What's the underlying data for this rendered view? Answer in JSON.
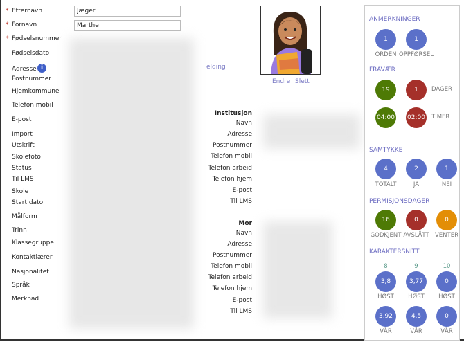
{
  "form": {
    "fields": [
      {
        "label": "Etternavn",
        "required": true,
        "value": "Jæger"
      },
      {
        "label": "Fornavn",
        "required": true,
        "value": "Marthe"
      },
      {
        "label": "Fødselsnummer",
        "required": true
      },
      {
        "label": "Fødselsdato"
      },
      {
        "label": "Adresse"
      },
      {
        "label": "Postnummer"
      },
      {
        "label": "Hjemkommune"
      },
      {
        "label": "Telefon mobil"
      },
      {
        "label": "E-post"
      },
      {
        "label": "Import"
      },
      {
        "label": "Utskrift"
      },
      {
        "label": "Skolefoto"
      },
      {
        "label": "Status"
      },
      {
        "label": "Til LMS"
      },
      {
        "label": "Skole"
      },
      {
        "label": "Start dato"
      },
      {
        "label": "Målform"
      },
      {
        "label": "Trinn"
      },
      {
        "label": "Klassegruppe"
      },
      {
        "label": "Kontaktlærer"
      },
      {
        "label": "Nasjonalitet"
      },
      {
        "label": "Språk"
      },
      {
        "label": "Merknad"
      }
    ],
    "required_mark": "*",
    "info_icon": "i",
    "partial_link": "elding"
  },
  "photo": {
    "edit": "Endre",
    "delete": "Slett"
  },
  "institusjon": {
    "title": "Institusjon",
    "labels": [
      "Navn",
      "Adresse",
      "Postnummer",
      "Telefon mobil",
      "Telefon arbeid",
      "Telefon hjem",
      "E-post",
      "Til LMS"
    ]
  },
  "mor": {
    "title": "Mor",
    "labels": [
      "Navn",
      "Adresse",
      "Postnummer",
      "Telefon mobil",
      "Telefon arbeid",
      "Telefon hjem",
      "E-post",
      "Til LMS"
    ]
  },
  "colors": {
    "blue": "#5b70c9",
    "green": "#4e7a05",
    "red": "#a5302a",
    "orange": "#e38e06",
    "header": "#6a6ac0"
  },
  "panel": {
    "anmerkninger": {
      "title": "ANMERKNINGER",
      "items": [
        {
          "value": "1",
          "label": "ORDEN"
        },
        {
          "value": "1",
          "label": "OPPFØRSEL"
        }
      ]
    },
    "fravaer": {
      "title": "FRAVÆR",
      "dager": {
        "label": "DAGER",
        "values": [
          "19",
          "1"
        ]
      },
      "timer": {
        "label": "TIMER",
        "values": [
          "04:00",
          "02:00"
        ]
      }
    },
    "samtykke": {
      "title": "SAMTYKKE",
      "items": [
        {
          "value": "4",
          "label": "TOTALT"
        },
        {
          "value": "2",
          "label": "JA"
        },
        {
          "value": "1",
          "label": "NEI"
        }
      ]
    },
    "permisjon": {
      "title": "PERMISJONSDAGER",
      "items": [
        {
          "value": "16",
          "label": "GODKJENT"
        },
        {
          "value": "0",
          "label": "AVSLÅTT"
        },
        {
          "value": "0",
          "label": "VENTER"
        }
      ]
    },
    "karakter": {
      "title": "KARAKTERSNITT",
      "grades": [
        "8",
        "9",
        "10"
      ],
      "host": {
        "label": "HØST",
        "values": [
          "3,8",
          "3,77",
          "0"
        ]
      },
      "var": {
        "label": "VÅR",
        "values": [
          "3,92",
          "4,5",
          "0"
        ]
      }
    }
  }
}
